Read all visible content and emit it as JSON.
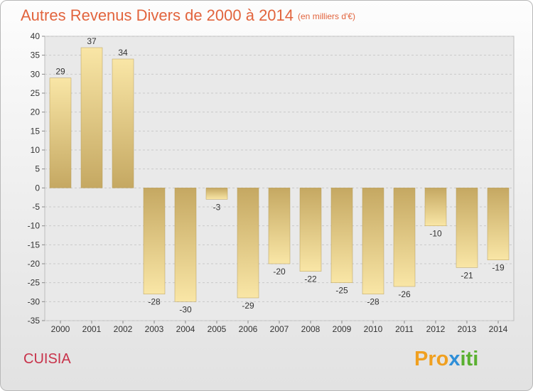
{
  "title": "Autres Revenus Divers de 2000 à 2014",
  "unit_note": "(en milliers d'€)",
  "commune": "CUISIA",
  "logo": {
    "part1": "Pro",
    "part2": "x",
    "part3": "iti"
  },
  "colors": {
    "title": "#e2643d",
    "commune": "#c8324a",
    "bar_light": "#f7e3a1",
    "bar_dark": "#c8ad67"
  },
  "chart_data": {
    "type": "bar",
    "categories": [
      "2000",
      "2001",
      "2002",
      "2003",
      "2004",
      "2005",
      "2006",
      "2007",
      "2008",
      "2009",
      "2010",
      "2011",
      "2012",
      "2013",
      "2014"
    ],
    "values": [
      29,
      37,
      34,
      -28,
      -30,
      -3,
      -29,
      -20,
      -22,
      -25,
      -28,
      -26,
      -10,
      -21,
      -19
    ],
    "title": "Autres Revenus Divers de 2000 à 2014",
    "xlabel": "",
    "ylabel": "",
    "ylim": [
      -35,
      40
    ],
    "yticks": [
      40,
      35,
      30,
      25,
      20,
      15,
      10,
      5,
      0,
      -5,
      -10,
      -15,
      -20,
      -25,
      -30,
      -35
    ],
    "grid": true
  }
}
